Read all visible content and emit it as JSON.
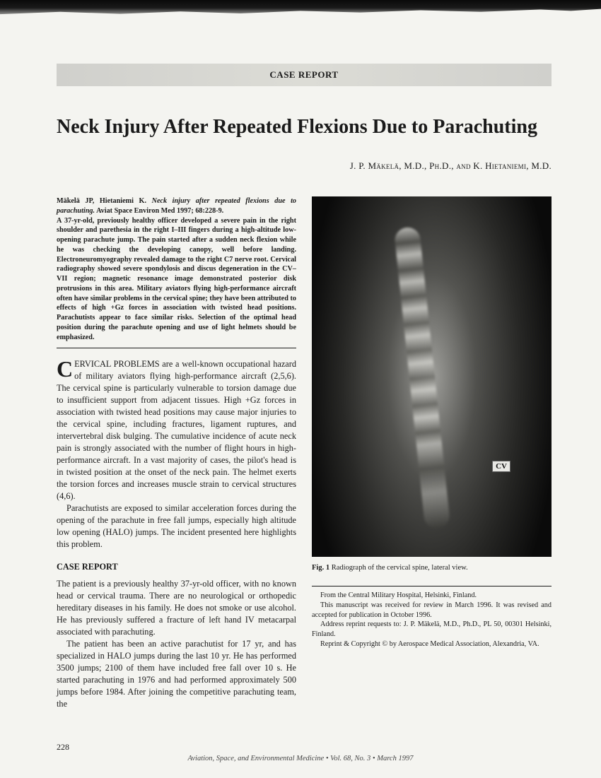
{
  "banner": "CASE REPORT",
  "title": "Neck Injury After Repeated Flexions Due to Parachuting",
  "authors": "J. P. Mäkelä, M.D., Ph.D., and K. Hietaniemi, M.D.",
  "abstract": {
    "citation_authors": "Mäkelä JP, Hietaniemi K.",
    "citation_title": "Neck injury after repeated flexions due to parachuting.",
    "citation_source": "Aviat Space Environ Med 1997; 68:228-9.",
    "body": "A 37-yr-old, previously healthy officer developed a severe pain in the right shoulder and parethesia in the right I–III fingers during a high-altitude low-opening parachute jump. The pain started after a sudden neck flexion while he was checking the developing canopy, well before landing. Electroneuromyography revealed damage to the right C7 nerve root. Cervical radiography showed severe spondylosis and discus degeneration in the CV–VII region; magnetic resonance image demonstrated posterior disk protrusions in this area. Military aviators flying high-performance aircraft often have similar problems in the cervical spine; they have been attributed to effects of high +Gz forces in association with twisted head positions. Parachutists appear to face similar risks. Selection of the optimal head position during the parachute opening and use of light helmets should be emphasized."
  },
  "intro": {
    "para1": "ERVICAL PROBLEMS are a well-known occupational hazard of military aviators flying high-performance aircraft (2,5,6). The cervical spine is particularly vulnerable to torsion damage due to insufficient support from adjacent tissues. High +Gz forces in association with twisted head positions may cause major injuries to the cervical spine, including fractures, ligament ruptures, and intervertebral disk bulging. The cumulative incidence of acute neck pain is strongly associated with the number of flight hours in high-performance aircraft. In a vast majority of cases, the pilot's head is in twisted position at the onset of the neck pain. The helmet exerts the torsion forces and increases muscle strain to cervical structures (4,6).",
    "para2": "Parachutists are exposed to similar acceleration forces during the opening of the parachute in free fall jumps, especially high altitude low opening (HALO) jumps. The incident presented here highlights this problem."
  },
  "section_heading": "CASE REPORT",
  "case": {
    "para1": "The patient is a previously healthy 37-yr-old officer, with no known head or cervical trauma. There are no neurological or orthopedic hereditary diseases in his family. He does not smoke or use alcohol. He has previously suffered a fracture of left hand IV metacarpal associated with parachuting.",
    "para2": "The patient has been an active parachutist for 17 yr, and has specialized in HALO jumps during the last 10 yr. He has performed 3500 jumps; 2100 of them have included free fall over 10 s. He started parachuting in 1976 and had performed approximately 500 jumps before 1984. After joining the competitive parachuting team, the"
  },
  "figure": {
    "label": "CV",
    "caption_bold": "Fig. 1",
    "caption_text": "Radiograph of the cervical spine, lateral view."
  },
  "footnotes": {
    "l1": "From the Central Military Hospital, Helsinki, Finland.",
    "l2": "This manuscript was received for review in March 1996. It was revised and accepted for publication in October 1996.",
    "l3": "Address reprint requests to: J. P. Mäkelä, M.D., Ph.D., PL 50, 00301 Helsinki, Finland.",
    "l4": "Reprint & Copyright © by Aerospace Medical Association, Alexandria, VA."
  },
  "page_number": "228",
  "running_footer": "Aviation, Space, and Environmental Medicine • Vol. 68, No. 3 • March 1997"
}
